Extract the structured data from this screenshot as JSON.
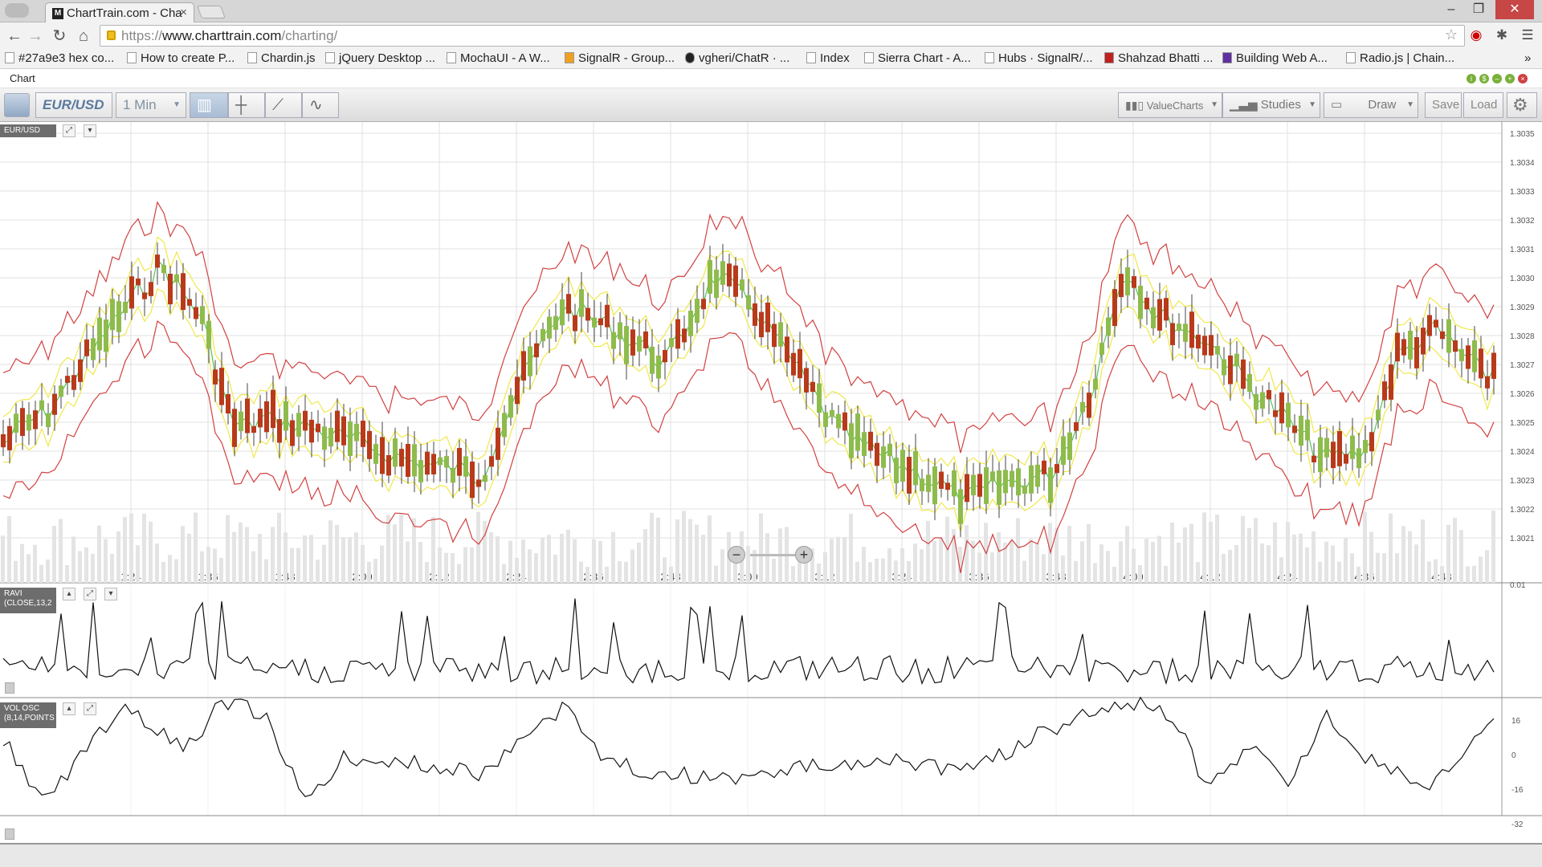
{
  "browser": {
    "tab_title": "ChartTrain.com - Cha",
    "tab_favicon": "M",
    "url_scheme": "https://",
    "url_host": "www.charttrain.com",
    "url_path": "/charting/"
  },
  "bookmarks": [
    "#27a9e3 hex co...",
    "How to create P...",
    "Chardin.js",
    "jQuery Desktop ...",
    "MochaUI - A W...",
    "SignalR - Group...",
    "vgheri/ChatR · ...",
    "Index",
    "Sierra Chart - A...",
    "Hubs · SignalR/...",
    "Shahzad Bhatti ...",
    "Building Web A...",
    "Radio.js | Chain..."
  ],
  "app": {
    "title": "Chart",
    "symbol": "EUR/USD",
    "interval": "1 Min",
    "valuecharts_label": "ValueCharts",
    "studies_label": "Studies",
    "draw_label": "Draw",
    "save_label": "Save",
    "load_label": "Load"
  },
  "panels": {
    "main_badge": "EUR/USD",
    "ravi_badge_1": "RAVI",
    "ravi_badge_2": "(CLOSE,13,2",
    "vol_badge_1": "VOL OSC",
    "vol_badge_2": "(8,14,POINTS"
  },
  "chart_data": {
    "type": "candlestick",
    "main_y_ticks": [
      "1.3035",
      "1.3034",
      "1.3033",
      "1.3032",
      "1.3031",
      "1.3030",
      "1.3029",
      "1.3028",
      "1.3027",
      "1.3026",
      "1.3025",
      "1.3024",
      "1.3023",
      "1.3022",
      "1.3021"
    ],
    "x_ticks": [
      "1:24",
      "1:36",
      "1:48",
      "2:00",
      "2:12",
      "2:24",
      "2:36",
      "2:48",
      "3:00",
      "3:12",
      "3:24",
      "3:36",
      "3:48",
      "4:00",
      "4:12",
      "4:24",
      "4:36",
      "4:48"
    ],
    "ravi_y_ticks": [
      "0.01"
    ],
    "vol_y_ticks": [
      "16",
      "0",
      "-16",
      "-32"
    ],
    "colors": {
      "up": "#8ebc4c",
      "down": "#b83a1a",
      "band_outer": "#d24040",
      "band_inner": "#f0e84a",
      "ma": "#52c452"
    }
  }
}
